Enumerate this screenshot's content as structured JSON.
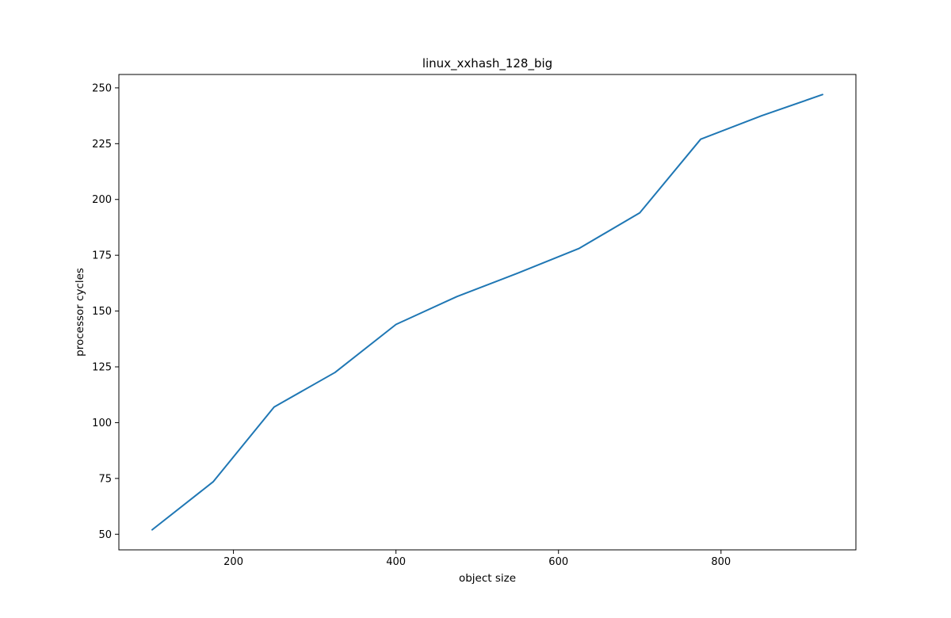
{
  "chart_data": {
    "type": "line",
    "title": "linux_xxhash_128_big",
    "xlabel": "object size",
    "ylabel": "processor cycles",
    "xlim": [
      59,
      966
    ],
    "ylim": [
      43,
      256
    ],
    "x_ticks": [
      200,
      400,
      600,
      800
    ],
    "y_ticks": [
      50,
      75,
      100,
      125,
      150,
      175,
      200,
      225,
      250
    ],
    "grid": false,
    "series": [
      {
        "color": "#1f77b4",
        "x": [
          100,
          175,
          250,
          325,
          400,
          475,
          550,
          625,
          700,
          775,
          850,
          925
        ],
        "y": [
          52,
          73.5,
          107,
          122.5,
          144,
          156.5,
          167,
          178,
          194,
          227,
          237.5,
          247
        ]
      }
    ]
  }
}
